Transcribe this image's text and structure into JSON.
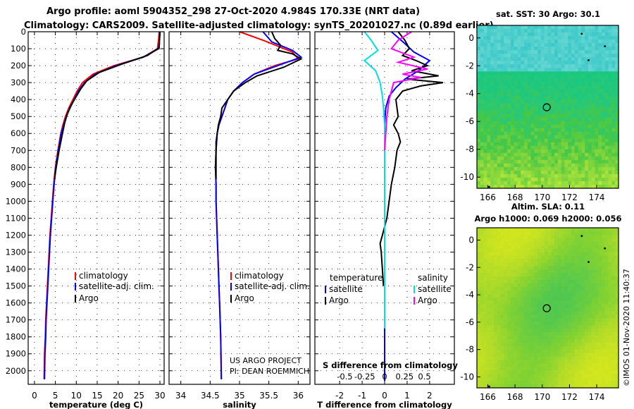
{
  "header": {
    "line1": "Argo profile: aoml 5904352_298 27-Oct-2020 4.984S 170.33E (NRT data)",
    "line2": "Climatology: CARS2009. Satellite-adjusted climatology: synTS_20201027.nc (0.89d earlier)"
  },
  "credit": {
    "line1": "US ARGO PROJECT",
    "line2": "PI: DEAN ROEMMICH",
    "stamp": "©IMOS 01-Nov-2020 11:40:37"
  },
  "colors": {
    "climatology": "#ff0000",
    "satellite": "#0000ff",
    "argo": "#000000",
    "sat_temp": "#0000ff",
    "sat_sal": "#00e0e0",
    "argo_sal": "#ff00ff"
  },
  "chart_data": [
    {
      "type": "line",
      "id": "temperature",
      "xlabel": "temperature (deg C)",
      "ylabel": "",
      "xlim": [
        -1.5,
        31
      ],
      "ylim": [
        2080,
        0
      ],
      "xticks": [
        0,
        5,
        10,
        15,
        20,
        25,
        30
      ],
      "yticks": [
        0,
        100,
        200,
        300,
        400,
        500,
        600,
        700,
        800,
        900,
        1000,
        1100,
        1200,
        1300,
        1400,
        1500,
        1600,
        1700,
        1800,
        1900,
        2000
      ],
      "legend": [
        "climatology",
        "satellite-adj. clim.",
        "Argo"
      ],
      "series": [
        {
          "name": "climatology",
          "x": [
            29.8,
            29.7,
            29.4,
            26,
            19,
            14,
            11.5,
            10.2,
            9.2,
            8.2,
            7.4,
            6.8,
            6.3,
            5.6,
            5,
            4.6,
            4.3,
            4,
            3.7,
            3.5,
            3.3,
            3.1,
            2.9,
            2.7,
            2.6,
            2.4,
            2.3
          ],
          "y": [
            0,
            40,
            100,
            150,
            200,
            250,
            300,
            350,
            400,
            450,
            500,
            550,
            600,
            700,
            800,
            900,
            1000,
            1100,
            1200,
            1300,
            1400,
            1500,
            1600,
            1700,
            1800,
            1900,
            2050
          ]
        },
        {
          "name": "satellite-adj. clim.",
          "x": [
            30,
            29.9,
            29.7,
            26,
            19.5,
            14.5,
            12,
            10.5,
            9.5,
            8.5,
            7.6,
            7,
            6.4,
            5.7,
            5.1,
            4.7,
            4.4,
            4.1,
            3.8,
            3.6,
            3.4,
            3.2,
            3,
            2.8,
            2.7,
            2.5,
            2.4
          ],
          "y": [
            0,
            40,
            100,
            150,
            200,
            250,
            300,
            350,
            400,
            450,
            500,
            550,
            600,
            700,
            800,
            900,
            1000,
            1100,
            1200,
            1300,
            1400,
            1500,
            1600,
            1700,
            1800,
            1900,
            2050
          ]
        },
        {
          "name": "Argo",
          "x": [
            30,
            29.9,
            29.8,
            27,
            21,
            15.5,
            12.5,
            11,
            9.8,
            8.6,
            7.8,
            7.2,
            6.3,
            5.9,
            5.2,
            4.8
          ],
          "y": [
            5,
            40,
            95,
            140,
            190,
            240,
            290,
            340,
            390,
            440,
            490,
            540,
            650,
            700,
            800,
            870
          ]
        }
      ]
    },
    {
      "type": "line",
      "id": "salinity",
      "xlabel": "salinity",
      "ylabel": "",
      "xlim": [
        33.8,
        36.2
      ],
      "ylim": [
        2080,
        0
      ],
      "xticks": [
        34,
        34.5,
        35,
        35.5,
        36
      ],
      "xticklabels": [
        "34",
        "34.5",
        "35",
        "35.5",
        "36"
      ],
      "legend": [
        "climatology",
        "satellite-adj. clim.",
        "Argo"
      ],
      "series": [
        {
          "name": "climatology",
          "x": [
            35.0,
            35.4,
            35.9,
            36.0,
            35.6,
            35.25,
            35.05,
            34.9,
            34.8,
            34.75,
            34.7,
            34.65,
            34.62,
            34.6,
            34.59,
            34.6,
            34.6,
            34.61,
            34.62,
            34.63,
            34.64,
            34.65,
            34.66,
            34.67,
            34.68,
            34.69
          ],
          "y": [
            0,
            50,
            120,
            160,
            200,
            250,
            300,
            350,
            400,
            450,
            500,
            550,
            600,
            700,
            800,
            900,
            1000,
            1100,
            1200,
            1300,
            1400,
            1500,
            1600,
            1700,
            1800,
            2050
          ]
        },
        {
          "name": "satellite-adj. clim.",
          "x": [
            35.4,
            35.55,
            35.9,
            36.05,
            35.65,
            35.25,
            35.05,
            34.9,
            34.8,
            34.75,
            34.7,
            34.65,
            34.62,
            34.6,
            34.59,
            34.6,
            34.6,
            34.61,
            34.62,
            34.63,
            34.64,
            34.65,
            34.66,
            34.67,
            34.68,
            34.69
          ],
          "y": [
            0,
            60,
            110,
            150,
            200,
            250,
            300,
            350,
            400,
            450,
            500,
            550,
            600,
            700,
            800,
            900,
            1000,
            1100,
            1200,
            1300,
            1400,
            1500,
            1600,
            1700,
            1800,
            2050
          ]
        },
        {
          "name": "Argo",
          "x": [
            35.55,
            35.6,
            35.7,
            35.65,
            35.9,
            36.05,
            35.75,
            35.3,
            35.1,
            34.9,
            34.8,
            34.7,
            34.68,
            34.64,
            34.6,
            34.6
          ],
          "y": [
            0,
            40,
            80,
            110,
            130,
            160,
            210,
            260,
            300,
            350,
            400,
            450,
            500,
            550,
            650,
            870
          ]
        }
      ]
    },
    {
      "type": "line",
      "id": "difference",
      "xlabel": "T difference from climatology",
      "xlabel2": "S difference from climatology",
      "xlim": [
        -3.1,
        3.1
      ],
      "ylim": [
        2080,
        0
      ],
      "xticks": [
        -2,
        -1,
        0,
        1,
        2
      ],
      "xticks2": [
        -0.5,
        -0.25,
        0,
        0.25,
        0.5
      ],
      "xticks2labels": [
        "-0.5",
        "-0.25",
        "0",
        "0.25",
        "0.5"
      ],
      "legend_titles": [
        "temperature",
        "salinity"
      ],
      "legend": [
        "satellite",
        "Argo",
        "satellite",
        "Argo"
      ],
      "series": [
        {
          "name": "temperature satellite",
          "x": [
            0.3,
            0.9,
            1.3,
            2.0,
            1.5,
            0.9,
            0.5,
            0.2,
            0.05,
            0,
            0,
            0,
            0,
            0,
            0,
            0,
            0,
            0,
            0,
            0,
            0,
            0,
            0,
            0,
            0,
            0
          ],
          "y": [
            0,
            70,
            120,
            170,
            230,
            280,
            330,
            380,
            450,
            550,
            650,
            750,
            850,
            950,
            1050,
            1150,
            1250,
            1350,
            1450,
            1550,
            1650,
            1750,
            1850,
            1950,
            2050,
            2060
          ]
        },
        {
          "name": "temperature Argo",
          "x": [
            0.6,
            0.9,
            1.1,
            0.8,
            1.4,
            1.9,
            1.2,
            2.4,
            1.0,
            2.6,
            1.6,
            0.8,
            0.5,
            0.6,
            0.4,
            0.6,
            0.7,
            0.55,
            0.5,
            0.45,
            0.3,
            0.2,
            0.1,
            0.0,
            -0.1,
            -0.2,
            -0.15,
            -0.1,
            -0.05
          ],
          "y": [
            0,
            50,
            100,
            140,
            170,
            200,
            230,
            260,
            280,
            300,
            320,
            350,
            400,
            500,
            550,
            600,
            650,
            700,
            750,
            800,
            900,
            1000,
            1100,
            1150,
            1200,
            1250,
            1300,
            1400,
            1500
          ]
        },
        {
          "name": "salinity satellite",
          "x": [
            -0.9,
            -0.6,
            -0.3,
            -0.9,
            -0.4,
            -0.2,
            -0.1,
            -0.05,
            0,
            0,
            0,
            0,
            0,
            0,
            0,
            0,
            0,
            0,
            0,
            0,
            0
          ],
          "y": [
            0,
            50,
            110,
            170,
            230,
            300,
            380,
            450,
            550,
            650,
            750,
            850,
            950,
            1050,
            1150,
            1250,
            1350,
            1450,
            1550,
            1650,
            1750
          ]
        },
        {
          "name": "salinity Argo",
          "x": [
            1.2,
            0.6,
            0.3,
            1.3,
            0.6,
            1.9,
            0.8,
            1.6,
            0.4,
            0.2,
            0.1,
            0.05,
            0
          ],
          "y": [
            0,
            50,
            100,
            150,
            180,
            220,
            250,
            270,
            300,
            400,
            500,
            600,
            700
          ]
        }
      ]
    },
    {
      "type": "heatmap",
      "id": "sst_map",
      "title": "sat. SST: 30 Argo: 30.1",
      "xticks": [
        166,
        168,
        170,
        172,
        174
      ],
      "yticks": [
        0,
        -2,
        -4,
        -6,
        -8,
        -10
      ],
      "xlim": [
        165.2,
        175.6
      ],
      "ylim": [
        -10.8,
        0.9
      ],
      "float_position": {
        "lon": 170.33,
        "lat": -4.984
      }
    },
    {
      "type": "heatmap",
      "id": "sla_map",
      "title": "Altim. SLA: 0.11",
      "subtitle": "Argo h1000: 0.069 h2000: 0.056",
      "xticks": [
        166,
        168,
        170,
        172,
        174
      ],
      "yticks": [
        0,
        -2,
        -4,
        -6,
        -8,
        -10
      ],
      "xlim": [
        165.2,
        175.6
      ],
      "ylim": [
        -10.8,
        0.9
      ],
      "float_position": {
        "lon": 170.33,
        "lat": -4.984
      }
    }
  ]
}
